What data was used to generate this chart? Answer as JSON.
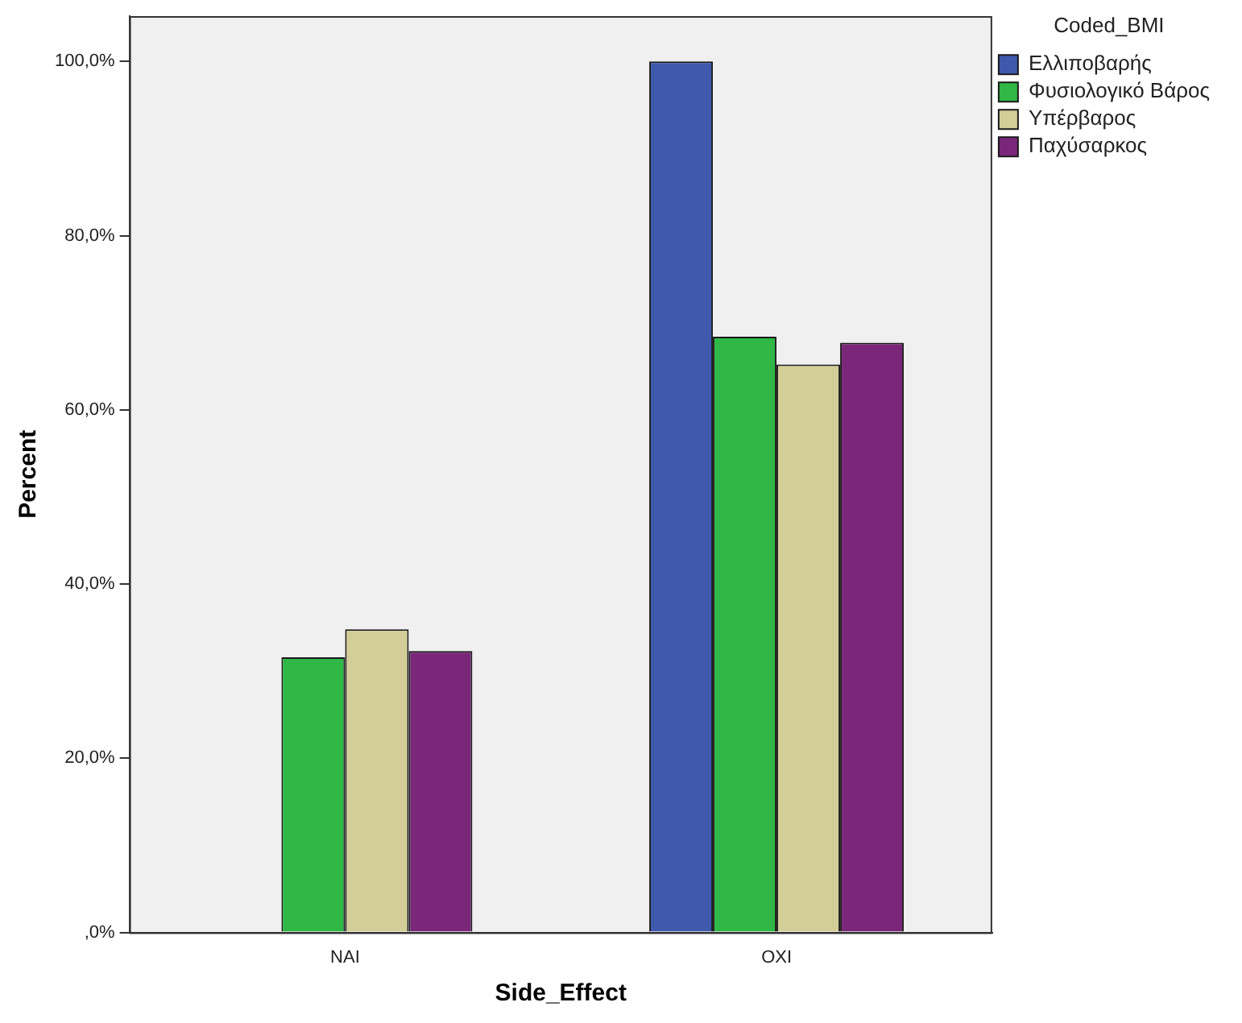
{
  "chart_data": {
    "type": "bar",
    "xlabel": "Side_Effect",
    "ylabel": "Percent",
    "legend_title": "Coded_BMI",
    "categories": [
      "NAI",
      "OXI"
    ],
    "series": [
      {
        "name": "Ελλιποβαρής",
        "color": "#3f59ad",
        "values": [
          0,
          100
        ]
      },
      {
        "name": "Φυσιολογικό Βάρος",
        "color": "#2fb845",
        "values": [
          31.6,
          68.4
        ]
      },
      {
        "name": "Υπέρβαρος",
        "color": "#d3ce97",
        "values": [
          34.8,
          65.2
        ]
      },
      {
        "name": "Παχύσαρκος",
        "color": "#7b2779",
        "values": [
          32.3,
          67.7
        ]
      }
    ],
    "ylim": [
      0,
      105.2
    ],
    "yticks": [
      {
        "value": 0,
        "label": ",0%"
      },
      {
        "value": 20,
        "label": "20,0%"
      },
      {
        "value": 40,
        "label": "40,0%"
      },
      {
        "value": 60,
        "label": "60,0%"
      },
      {
        "value": 80,
        "label": "80,0%"
      },
      {
        "value": 100,
        "label": "100,0%"
      }
    ],
    "grid": false,
    "legend": "top right"
  }
}
